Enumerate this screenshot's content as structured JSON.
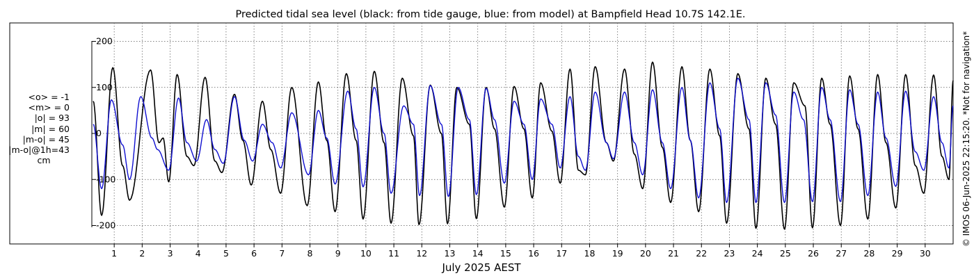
{
  "chart_data": {
    "type": "line",
    "title": "Predicted tidal sea level (black: from tide gauge, blue: from model) at Bampfield Head 10.7S 142.1E.",
    "xlabel": "July 2025 AEST",
    "ylabel": "",
    "xlim": [
      0.2,
      31.0
    ],
    "ylim": [
      -240,
      240
    ],
    "y_ticks": [
      200,
      100,
      0,
      -100,
      -200
    ],
    "x_ticks": [
      1,
      2,
      3,
      4,
      5,
      6,
      7,
      8,
      9,
      10,
      11,
      12,
      13,
      14,
      15,
      16,
      17,
      18,
      19,
      20,
      21,
      22,
      23,
      24,
      25,
      26,
      27,
      28,
      29,
      30
    ],
    "grid": true,
    "series": [
      {
        "name": "black: from tide gauge",
        "color": "#000000",
        "extrema": [
          [
            0.25,
            70
          ],
          [
            0.55,
            -178
          ],
          [
            0.95,
            143
          ],
          [
            1.3,
            -70
          ],
          [
            1.55,
            -145
          ],
          [
            2.3,
            138
          ],
          [
            2.6,
            -20
          ],
          [
            2.75,
            -10
          ],
          [
            2.95,
            -105
          ],
          [
            3.25,
            128
          ],
          [
            3.6,
            -50
          ],
          [
            3.85,
            -70
          ],
          [
            4.25,
            122
          ],
          [
            4.6,
            -60
          ],
          [
            4.85,
            -85
          ],
          [
            5.3,
            85
          ],
          [
            5.6,
            -15
          ],
          [
            5.9,
            -112
          ],
          [
            6.3,
            70
          ],
          [
            6.6,
            -35
          ],
          [
            6.95,
            -130
          ],
          [
            7.35,
            100
          ],
          [
            7.9,
            -157
          ],
          [
            8.3,
            112
          ],
          [
            8.6,
            -15
          ],
          [
            8.9,
            -170
          ],
          [
            9.3,
            130
          ],
          [
            9.65,
            -15
          ],
          [
            9.9,
            -186
          ],
          [
            10.3,
            135
          ],
          [
            10.65,
            -20
          ],
          [
            10.9,
            -195
          ],
          [
            11.3,
            120
          ],
          [
            11.7,
            -5
          ],
          [
            11.9,
            -198
          ],
          [
            12.3,
            105
          ],
          [
            12.7,
            0
          ],
          [
            12.92,
            -196
          ],
          [
            13.25,
            100
          ],
          [
            13.7,
            20
          ],
          [
            13.95,
            -185
          ],
          [
            14.3,
            100
          ],
          [
            14.6,
            10
          ],
          [
            14.95,
            -160
          ],
          [
            15.3,
            102
          ],
          [
            15.65,
            10
          ],
          [
            15.95,
            -140
          ],
          [
            16.25,
            110
          ],
          [
            16.65,
            5
          ],
          [
            16.95,
            -108
          ],
          [
            17.3,
            140
          ],
          [
            17.6,
            -80
          ],
          [
            17.85,
            -90
          ],
          [
            18.2,
            145
          ],
          [
            18.6,
            -20
          ],
          [
            18.85,
            -60
          ],
          [
            19.25,
            140
          ],
          [
            19.6,
            -45
          ],
          [
            19.9,
            -120
          ],
          [
            20.25,
            155
          ],
          [
            20.6,
            -30
          ],
          [
            20.9,
            -150
          ],
          [
            21.3,
            145
          ],
          [
            21.6,
            -15
          ],
          [
            21.9,
            -170
          ],
          [
            22.3,
            140
          ],
          [
            22.65,
            -5
          ],
          [
            22.9,
            -195
          ],
          [
            23.3,
            130
          ],
          [
            23.7,
            10
          ],
          [
            23.95,
            -206
          ],
          [
            24.3,
            120
          ],
          [
            24.65,
            20
          ],
          [
            24.97,
            -208
          ],
          [
            25.3,
            110
          ],
          [
            25.7,
            60
          ],
          [
            25.97,
            -205
          ],
          [
            26.3,
            120
          ],
          [
            26.6,
            20
          ],
          [
            26.97,
            -200
          ],
          [
            27.3,
            125
          ],
          [
            27.6,
            10
          ],
          [
            27.95,
            -186
          ],
          [
            28.3,
            128
          ],
          [
            28.6,
            -20
          ],
          [
            28.95,
            -162
          ],
          [
            29.3,
            128
          ],
          [
            29.65,
            -70
          ],
          [
            29.95,
            -130
          ],
          [
            30.3,
            127
          ],
          [
            30.6,
            -50
          ],
          [
            30.85,
            -100
          ],
          [
            31.0,
            115
          ]
        ]
      },
      {
        "name": "blue: from model",
        "color": "#1010d0",
        "extrema": [
          [
            0.25,
            20
          ],
          [
            0.55,
            -120
          ],
          [
            0.9,
            73
          ],
          [
            1.3,
            -25
          ],
          [
            1.55,
            -100
          ],
          [
            1.95,
            80
          ],
          [
            2.35,
            -10
          ],
          [
            2.55,
            -35
          ],
          [
            2.95,
            -80
          ],
          [
            3.3,
            77
          ],
          [
            3.6,
            -20
          ],
          [
            3.95,
            -60
          ],
          [
            4.3,
            30
          ],
          [
            4.6,
            -35
          ],
          [
            4.9,
            -65
          ],
          [
            5.3,
            80
          ],
          [
            5.65,
            -15
          ],
          [
            5.95,
            -60
          ],
          [
            6.3,
            20
          ],
          [
            6.65,
            -20
          ],
          [
            6.95,
            -75
          ],
          [
            7.35,
            45
          ],
          [
            7.95,
            -90
          ],
          [
            8.3,
            50
          ],
          [
            8.6,
            -10
          ],
          [
            8.9,
            -110
          ],
          [
            9.35,
            92
          ],
          [
            9.65,
            10
          ],
          [
            9.9,
            -116
          ],
          [
            10.3,
            100
          ],
          [
            10.65,
            0
          ],
          [
            10.9,
            -130
          ],
          [
            11.35,
            60
          ],
          [
            11.7,
            20
          ],
          [
            11.92,
            -135
          ],
          [
            12.3,
            104
          ],
          [
            12.7,
            20
          ],
          [
            12.95,
            -137
          ],
          [
            13.3,
            100
          ],
          [
            13.7,
            30
          ],
          [
            13.95,
            -133
          ],
          [
            14.3,
            98
          ],
          [
            14.6,
            30
          ],
          [
            14.95,
            -108
          ],
          [
            15.3,
            70
          ],
          [
            15.65,
            20
          ],
          [
            15.95,
            -100
          ],
          [
            16.25,
            75
          ],
          [
            16.65,
            20
          ],
          [
            16.95,
            -75
          ],
          [
            17.3,
            80
          ],
          [
            17.6,
            -50
          ],
          [
            17.85,
            -80
          ],
          [
            18.2,
            90
          ],
          [
            18.6,
            -20
          ],
          [
            18.85,
            -55
          ],
          [
            19.25,
            90
          ],
          [
            19.6,
            -20
          ],
          [
            19.9,
            -90
          ],
          [
            20.25,
            95
          ],
          [
            20.6,
            -20
          ],
          [
            20.9,
            -120
          ],
          [
            21.3,
            100
          ],
          [
            21.6,
            -15
          ],
          [
            21.9,
            -140
          ],
          [
            22.3,
            110
          ],
          [
            22.65,
            10
          ],
          [
            22.9,
            -150
          ],
          [
            23.3,
            120
          ],
          [
            23.7,
            30
          ],
          [
            23.95,
            -150
          ],
          [
            24.3,
            110
          ],
          [
            24.65,
            40
          ],
          [
            24.97,
            -150
          ],
          [
            25.3,
            90
          ],
          [
            25.65,
            30
          ],
          [
            25.97,
            -148
          ],
          [
            26.3,
            100
          ],
          [
            26.6,
            30
          ],
          [
            26.97,
            -148
          ],
          [
            27.3,
            95
          ],
          [
            27.6,
            20
          ],
          [
            27.95,
            -135
          ],
          [
            28.3,
            90
          ],
          [
            28.6,
            -10
          ],
          [
            28.95,
            -115
          ],
          [
            29.3,
            92
          ],
          [
            29.65,
            -40
          ],
          [
            29.95,
            -80
          ],
          [
            30.3,
            80
          ],
          [
            30.6,
            -20
          ],
          [
            30.85,
            -75
          ],
          [
            31.0,
            60
          ]
        ]
      }
    ]
  },
  "stats": {
    "lines": [
      "<o> = -1",
      "<m> = 0",
      "|o| = 93",
      "|m| = 60",
      "|m-o| = 45",
      "|m-o|@1h=43"
    ],
    "unit": "cm"
  },
  "copyright": "© IMOS 06-Jun-2025 22:15:20. *Not for navigation*"
}
